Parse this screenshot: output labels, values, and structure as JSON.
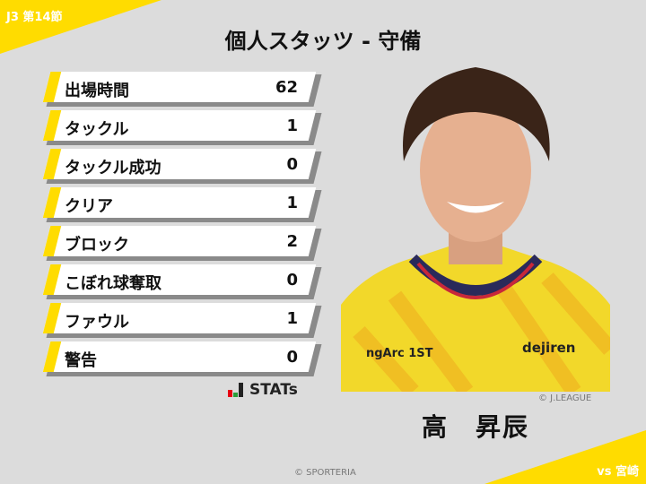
{
  "header": {
    "round": "J3 第14節",
    "title": "個人スタッツ - 守備",
    "opponent": "vs 宮崎"
  },
  "stats": [
    {
      "label": "出場時間",
      "value": "62"
    },
    {
      "label": "タックル",
      "value": "1"
    },
    {
      "label": "タックル成功",
      "value": "0"
    },
    {
      "label": "クリア",
      "value": "1"
    },
    {
      "label": "ブロック",
      "value": "2"
    },
    {
      "label": "こぼれ球奪取",
      "value": "0"
    },
    {
      "label": "ファウル",
      "value": "1"
    },
    {
      "label": "警告",
      "value": "0"
    }
  ],
  "brand": {
    "logo_text": "STATs"
  },
  "player": {
    "name": "高　昇辰",
    "photo_credit": "© J.LEAGUE",
    "shirt_sponsors": [
      "ngArc 1ST",
      "dejiren"
    ]
  },
  "footer": {
    "copyright": "© SPORTERIA"
  },
  "colors": {
    "accent": "#ffdc00",
    "background": "#dcdcdc"
  }
}
